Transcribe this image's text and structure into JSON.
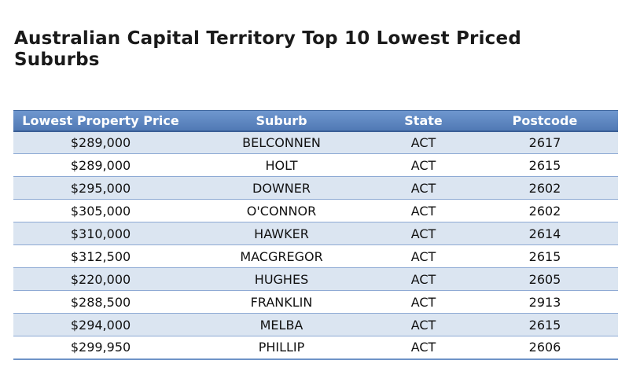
{
  "page": {
    "title": "Australian Capital Territory Top 10 Lowest Priced Suburbs"
  },
  "table": {
    "headers": [
      "Lowest Property Price",
      "Suburb",
      "State",
      "Postcode"
    ],
    "rows": [
      {
        "price": "$289,000",
        "suburb": "BELCONNEN",
        "state": "ACT",
        "postcode": "2617"
      },
      {
        "price": "$289,000",
        "suburb": "HOLT",
        "state": "ACT",
        "postcode": "2615"
      },
      {
        "price": "$295,000",
        "suburb": "DOWNER",
        "state": "ACT",
        "postcode": "2602"
      },
      {
        "price": "$305,000",
        "suburb": "O'CONNOR",
        "state": "ACT",
        "postcode": "2602"
      },
      {
        "price": "$310,000",
        "suburb": "HAWKER",
        "state": "ACT",
        "postcode": "2614"
      },
      {
        "price": "$312,500",
        "suburb": "MACGREGOR",
        "state": "ACT",
        "postcode": "2615"
      },
      {
        "price": "$220,000",
        "suburb": "HUGHES",
        "state": "ACT",
        "postcode": "2605"
      },
      {
        "price": "$288,500",
        "suburb": "FRANKLIN",
        "state": "ACT",
        "postcode": "2913"
      },
      {
        "price": "$294,000",
        "suburb": "MELBA",
        "state": "ACT",
        "postcode": "2615"
      },
      {
        "price": "$299,950",
        "suburb": "PHILLIP",
        "state": "ACT",
        "postcode": "2606"
      }
    ]
  },
  "colors": {
    "header_background": "#5b84bf",
    "header_text": "#ffffff",
    "band_shade": "#dbe5f1",
    "row_divider": "#8eaad4"
  }
}
